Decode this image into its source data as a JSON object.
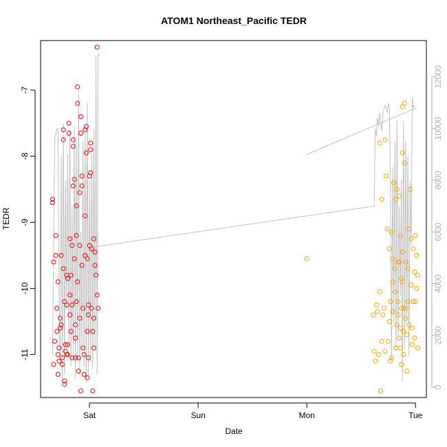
{
  "chart_data": {
    "type": "scatter",
    "title": "ATOM1 Northeast_Pacific TEDR",
    "xlabel": "Date",
    "ylabel": "TEDR",
    "x_tick_labels": [
      "Sat",
      "Sun",
      "Mon",
      "Tue"
    ],
    "x_tick_days": [
      1,
      2,
      3,
      4
    ],
    "xlim": [
      0.55,
      4.1
    ],
    "ylim": [
      -11.65,
      -6.25
    ],
    "y_ticks": [
      -11,
      -10,
      -9,
      -8,
      -7
    ],
    "y2lim": [
      -400,
      13400
    ],
    "y2_ticks": [
      0,
      2000,
      4000,
      6000,
      8000,
      10000,
      12000
    ],
    "grid": false,
    "legend": "none",
    "colors": {
      "series1": "#ff0000",
      "series2": "#ffa500",
      "line": "#c0c0c0",
      "axis": "#000000",
      "right_axis": "#b0b0b0"
    },
    "series": [
      {
        "color": "#ff0000",
        "points": [
          [
            0.66,
            -8.65
          ],
          [
            0.66,
            -8.7
          ],
          [
            0.67,
            -9.6
          ],
          [
            0.67,
            -11.15
          ],
          [
            0.68,
            -10.8
          ],
          [
            0.69,
            -9.2
          ],
          [
            0.69,
            -9.5
          ],
          [
            0.7,
            -10.3
          ],
          [
            0.7,
            -10.65
          ],
          [
            0.71,
            -11.0
          ],
          [
            0.71,
            -11.3
          ],
          [
            0.72,
            -10.9
          ],
          [
            0.72,
            -11.1
          ],
          [
            0.73,
            -10.6
          ],
          [
            0.73,
            -10.45
          ],
          [
            0.74,
            -9.5
          ],
          [
            0.74,
            -10.55
          ],
          [
            0.75,
            -11.15
          ],
          [
            0.75,
            -11.05
          ],
          [
            0.76,
            -7.6
          ],
          [
            0.76,
            -7.75
          ],
          [
            0.76,
            -9.7
          ],
          [
            0.77,
            -11.4
          ],
          [
            0.77,
            -11.45
          ],
          [
            0.77,
            -10.2
          ],
          [
            0.78,
            -10.85
          ],
          [
            0.78,
            -10.95
          ],
          [
            0.79,
            -10.25
          ],
          [
            0.79,
            -9.8
          ],
          [
            0.8,
            -9.85
          ],
          [
            0.8,
            -10.85
          ],
          [
            0.8,
            -11.0
          ],
          [
            0.81,
            -7.5
          ],
          [
            0.81,
            -7.65
          ],
          [
            0.82,
            -10.1
          ],
          [
            0.82,
            -10.4
          ],
          [
            0.82,
            -9.25
          ],
          [
            0.83,
            -9.8
          ],
          [
            0.83,
            -10.65
          ],
          [
            0.84,
            -11.05
          ],
          [
            0.84,
            -10.25
          ],
          [
            0.84,
            -9.35
          ],
          [
            0.85,
            -7.75
          ],
          [
            0.85,
            -7.85
          ],
          [
            0.85,
            -8.45
          ],
          [
            0.86,
            -8.35
          ],
          [
            0.86,
            -9.55
          ],
          [
            0.87,
            -10.55
          ],
          [
            0.87,
            -11.05
          ],
          [
            0.88,
            -8.75
          ],
          [
            0.88,
            -9.2
          ],
          [
            0.88,
            -10.2
          ],
          [
            0.89,
            -6.95
          ],
          [
            0.89,
            -7.2
          ],
          [
            0.89,
            -9.9
          ],
          [
            0.9,
            -11.05
          ],
          [
            0.9,
            -11.25
          ],
          [
            0.91,
            -10.45
          ],
          [
            0.91,
            -9.35
          ],
          [
            0.91,
            -8.55
          ],
          [
            0.92,
            -7.4
          ],
          [
            0.92,
            -7.65
          ],
          [
            0.93,
            -8.3
          ],
          [
            0.93,
            -8.45
          ],
          [
            0.93,
            -9.65
          ],
          [
            0.94,
            -10.3
          ],
          [
            0.94,
            -10.9
          ],
          [
            0.95,
            -11.3
          ],
          [
            0.95,
            -11.0
          ],
          [
            0.96,
            -9.5
          ],
          [
            0.96,
            -8.9
          ],
          [
            0.96,
            -7.6
          ],
          [
            0.97,
            -7.55
          ],
          [
            0.97,
            -7.95
          ],
          [
            0.98,
            -9.55
          ],
          [
            0.98,
            -10.65
          ],
          [
            0.98,
            -11.35
          ],
          [
            0.99,
            -11.05
          ],
          [
            0.99,
            -10.25
          ],
          [
            1.0,
            -9.35
          ],
          [
            1.0,
            -8.3
          ],
          [
            1.01,
            -7.8
          ],
          [
            1.01,
            -7.9
          ],
          [
            1.01,
            -8.25
          ],
          [
            1.02,
            -9.4
          ],
          [
            1.02,
            -10.3
          ],
          [
            1.03,
            -10.65
          ],
          [
            1.03,
            -11.55
          ],
          [
            1.04,
            -10.9
          ],
          [
            1.04,
            -10.45
          ],
          [
            1.05,
            -9.65
          ],
          [
            1.05,
            -9.45
          ],
          [
            1.06,
            -9.8
          ],
          [
            1.07,
            -6.35
          ],
          [
            1.07,
            -10.1
          ],
          [
            1.08,
            -10.3
          ],
          [
            1.04,
            -9.25
          ],
          [
            0.99,
            -10.4
          ],
          [
            0.87,
            -10.75
          ],
          [
            0.79,
            -11.0
          ],
          [
            0.71,
            -9.9
          ],
          [
            0.92,
            -11.55
          ]
        ]
      },
      {
        "color": "#ffa500",
        "points": [
          [
            3.0,
            -9.55
          ],
          [
            3.61,
            -10.4
          ],
          [
            3.62,
            -10.95
          ],
          [
            3.63,
            -11.1
          ],
          [
            3.64,
            -10.25
          ],
          [
            3.65,
            -10.35
          ],
          [
            3.66,
            -11.0
          ],
          [
            3.67,
            -10.05
          ],
          [
            3.67,
            -7.8
          ],
          [
            3.68,
            -11.55
          ],
          [
            3.69,
            -8.65
          ],
          [
            3.69,
            -10.8
          ],
          [
            3.7,
            -10.4
          ],
          [
            3.71,
            -10.3
          ],
          [
            3.72,
            -7.75
          ],
          [
            3.73,
            -8.3
          ],
          [
            3.74,
            -9.1
          ],
          [
            3.75,
            -10.8
          ],
          [
            3.76,
            -10.5
          ],
          [
            3.76,
            -9.4
          ],
          [
            3.77,
            -11.1
          ],
          [
            3.77,
            -10.2
          ],
          [
            3.78,
            -9.15
          ],
          [
            3.78,
            -11.05
          ],
          [
            3.79,
            -9.55
          ],
          [
            3.79,
            -9.9
          ],
          [
            3.79,
            -10.35
          ],
          [
            3.8,
            -8.4
          ],
          [
            3.81,
            -9.7
          ],
          [
            3.81,
            -10.05
          ],
          [
            3.82,
            -10.9
          ],
          [
            3.82,
            -8.65
          ],
          [
            3.83,
            -8.5
          ],
          [
            3.83,
            -10.55
          ],
          [
            3.84,
            -10.4
          ],
          [
            3.84,
            -10.2
          ],
          [
            3.84,
            -9.6
          ],
          [
            3.85,
            -8.6
          ],
          [
            3.85,
            -9.6
          ],
          [
            3.86,
            -9.2
          ],
          [
            3.86,
            -10.6
          ],
          [
            3.86,
            -10.9
          ],
          [
            3.87,
            -9.85
          ],
          [
            3.87,
            -10.3
          ],
          [
            3.87,
            -11.15
          ],
          [
            3.88,
            -7.95
          ],
          [
            3.88,
            -7.25
          ],
          [
            3.88,
            -9.45
          ],
          [
            3.89,
            -10.3
          ],
          [
            3.89,
            -10.65
          ],
          [
            3.89,
            -11.0
          ],
          [
            3.9,
            -7.2
          ],
          [
            3.9,
            -8.1
          ],
          [
            3.91,
            -9.6
          ],
          [
            3.91,
            -10.45
          ],
          [
            3.92,
            -10.7
          ],
          [
            3.92,
            -11.25
          ],
          [
            3.93,
            -9.7
          ],
          [
            3.93,
            -10.2
          ],
          [
            3.94,
            -10.55
          ],
          [
            3.94,
            -9.1
          ],
          [
            3.95,
            -8.5
          ],
          [
            3.96,
            -9.25
          ],
          [
            3.96,
            -9.95
          ],
          [
            3.97,
            -10.85
          ],
          [
            3.97,
            -10.6
          ],
          [
            3.98,
            -9.4
          ],
          [
            3.98,
            -10.2
          ],
          [
            3.99,
            -9.75
          ],
          [
            3.99,
            -10.75
          ],
          [
            4.0,
            -9.2
          ],
          [
            4.0,
            -10.2
          ],
          [
            4.01,
            -10.0
          ],
          [
            4.01,
            -9.5
          ],
          [
            4.02,
            -10.9
          ],
          [
            4.02,
            -9.8
          ],
          [
            3.88,
            -9.9
          ],
          [
            3.91,
            -10.3
          ],
          [
            3.85,
            -10.75
          ],
          [
            3.72,
            -10.95
          ]
        ]
      },
      {
        "name_hidden": true,
        "color": "#c0c0c0",
        "line_points": [
          [
            0.66,
            1200
          ],
          [
            0.68,
            9600
          ],
          [
            0.7,
            10000
          ],
          [
            0.71,
            10000
          ],
          [
            0.72,
            3500
          ],
          [
            0.73,
            1000
          ],
          [
            0.74,
            9000
          ],
          [
            0.75,
            200
          ],
          [
            0.76,
            10200
          ],
          [
            0.77,
            500
          ],
          [
            0.78,
            8000
          ],
          [
            0.79,
            3000
          ],
          [
            0.8,
            9000
          ],
          [
            0.81,
            1500
          ],
          [
            0.82,
            10000
          ],
          [
            0.83,
            800
          ],
          [
            0.84,
            7000
          ],
          [
            0.85,
            1200
          ],
          [
            0.86,
            10100
          ],
          [
            0.87,
            300
          ],
          [
            0.88,
            9500
          ],
          [
            0.89,
            1000
          ],
          [
            0.9,
            11500
          ],
          [
            0.91,
            500
          ],
          [
            0.92,
            6000
          ],
          [
            0.93,
            1500
          ],
          [
            0.94,
            9500
          ],
          [
            0.95,
            800
          ],
          [
            0.96,
            10100
          ],
          [
            0.97,
            200
          ],
          [
            0.98,
            11000
          ],
          [
            0.99,
            400
          ],
          [
            1.0,
            8000
          ],
          [
            1.01,
            1000
          ],
          [
            1.02,
            9000
          ],
          [
            1.03,
            700
          ],
          [
            1.04,
            10000
          ],
          [
            1.05,
            1500
          ],
          [
            1.06,
            12800
          ],
          [
            1.07,
            500
          ],
          [
            1.08,
            12900
          ],
          [
            1.09,
            12800
          ],
          [
            1.0,
            5400
          ],
          [
            3.62,
            7000
          ],
          [
            3.63,
            10000
          ],
          [
            3.64,
            9700
          ],
          [
            3.65,
            10400
          ],
          [
            3.66,
            10100
          ],
          [
            3.67,
            10600
          ],
          [
            3.68,
            10200
          ],
          [
            3.69,
            9900
          ],
          [
            3.7,
            10600
          ],
          [
            3.72,
            10900
          ],
          [
            3.73,
            10800
          ],
          [
            3.74,
            10600
          ],
          [
            3.75,
            11000
          ],
          [
            3.76,
            10800
          ],
          [
            3.77,
            7600
          ],
          [
            3.78,
            1000
          ],
          [
            3.79,
            8500
          ],
          [
            3.8,
            2500
          ],
          [
            3.81,
            9500
          ],
          [
            3.82,
            1500
          ],
          [
            3.83,
            10300
          ],
          [
            3.84,
            2000
          ],
          [
            3.85,
            7000
          ],
          [
            3.86,
            3500
          ],
          [
            3.87,
            8000
          ],
          [
            3.88,
            200
          ],
          [
            3.89,
            10300
          ],
          [
            3.9,
            1500
          ],
          [
            3.91,
            9500
          ],
          [
            3.92,
            2500
          ],
          [
            3.93,
            9000
          ],
          [
            3.94,
            1200
          ],
          [
            3.95,
            8000
          ],
          [
            3.96,
            5500
          ],
          [
            3.97,
            11200
          ],
          [
            3.98,
            10800
          ],
          [
            3.99,
            10900
          ],
          [
            3.0,
            9000
          ],
          [
            4.01,
            10300
          ]
        ]
      }
    ]
  }
}
